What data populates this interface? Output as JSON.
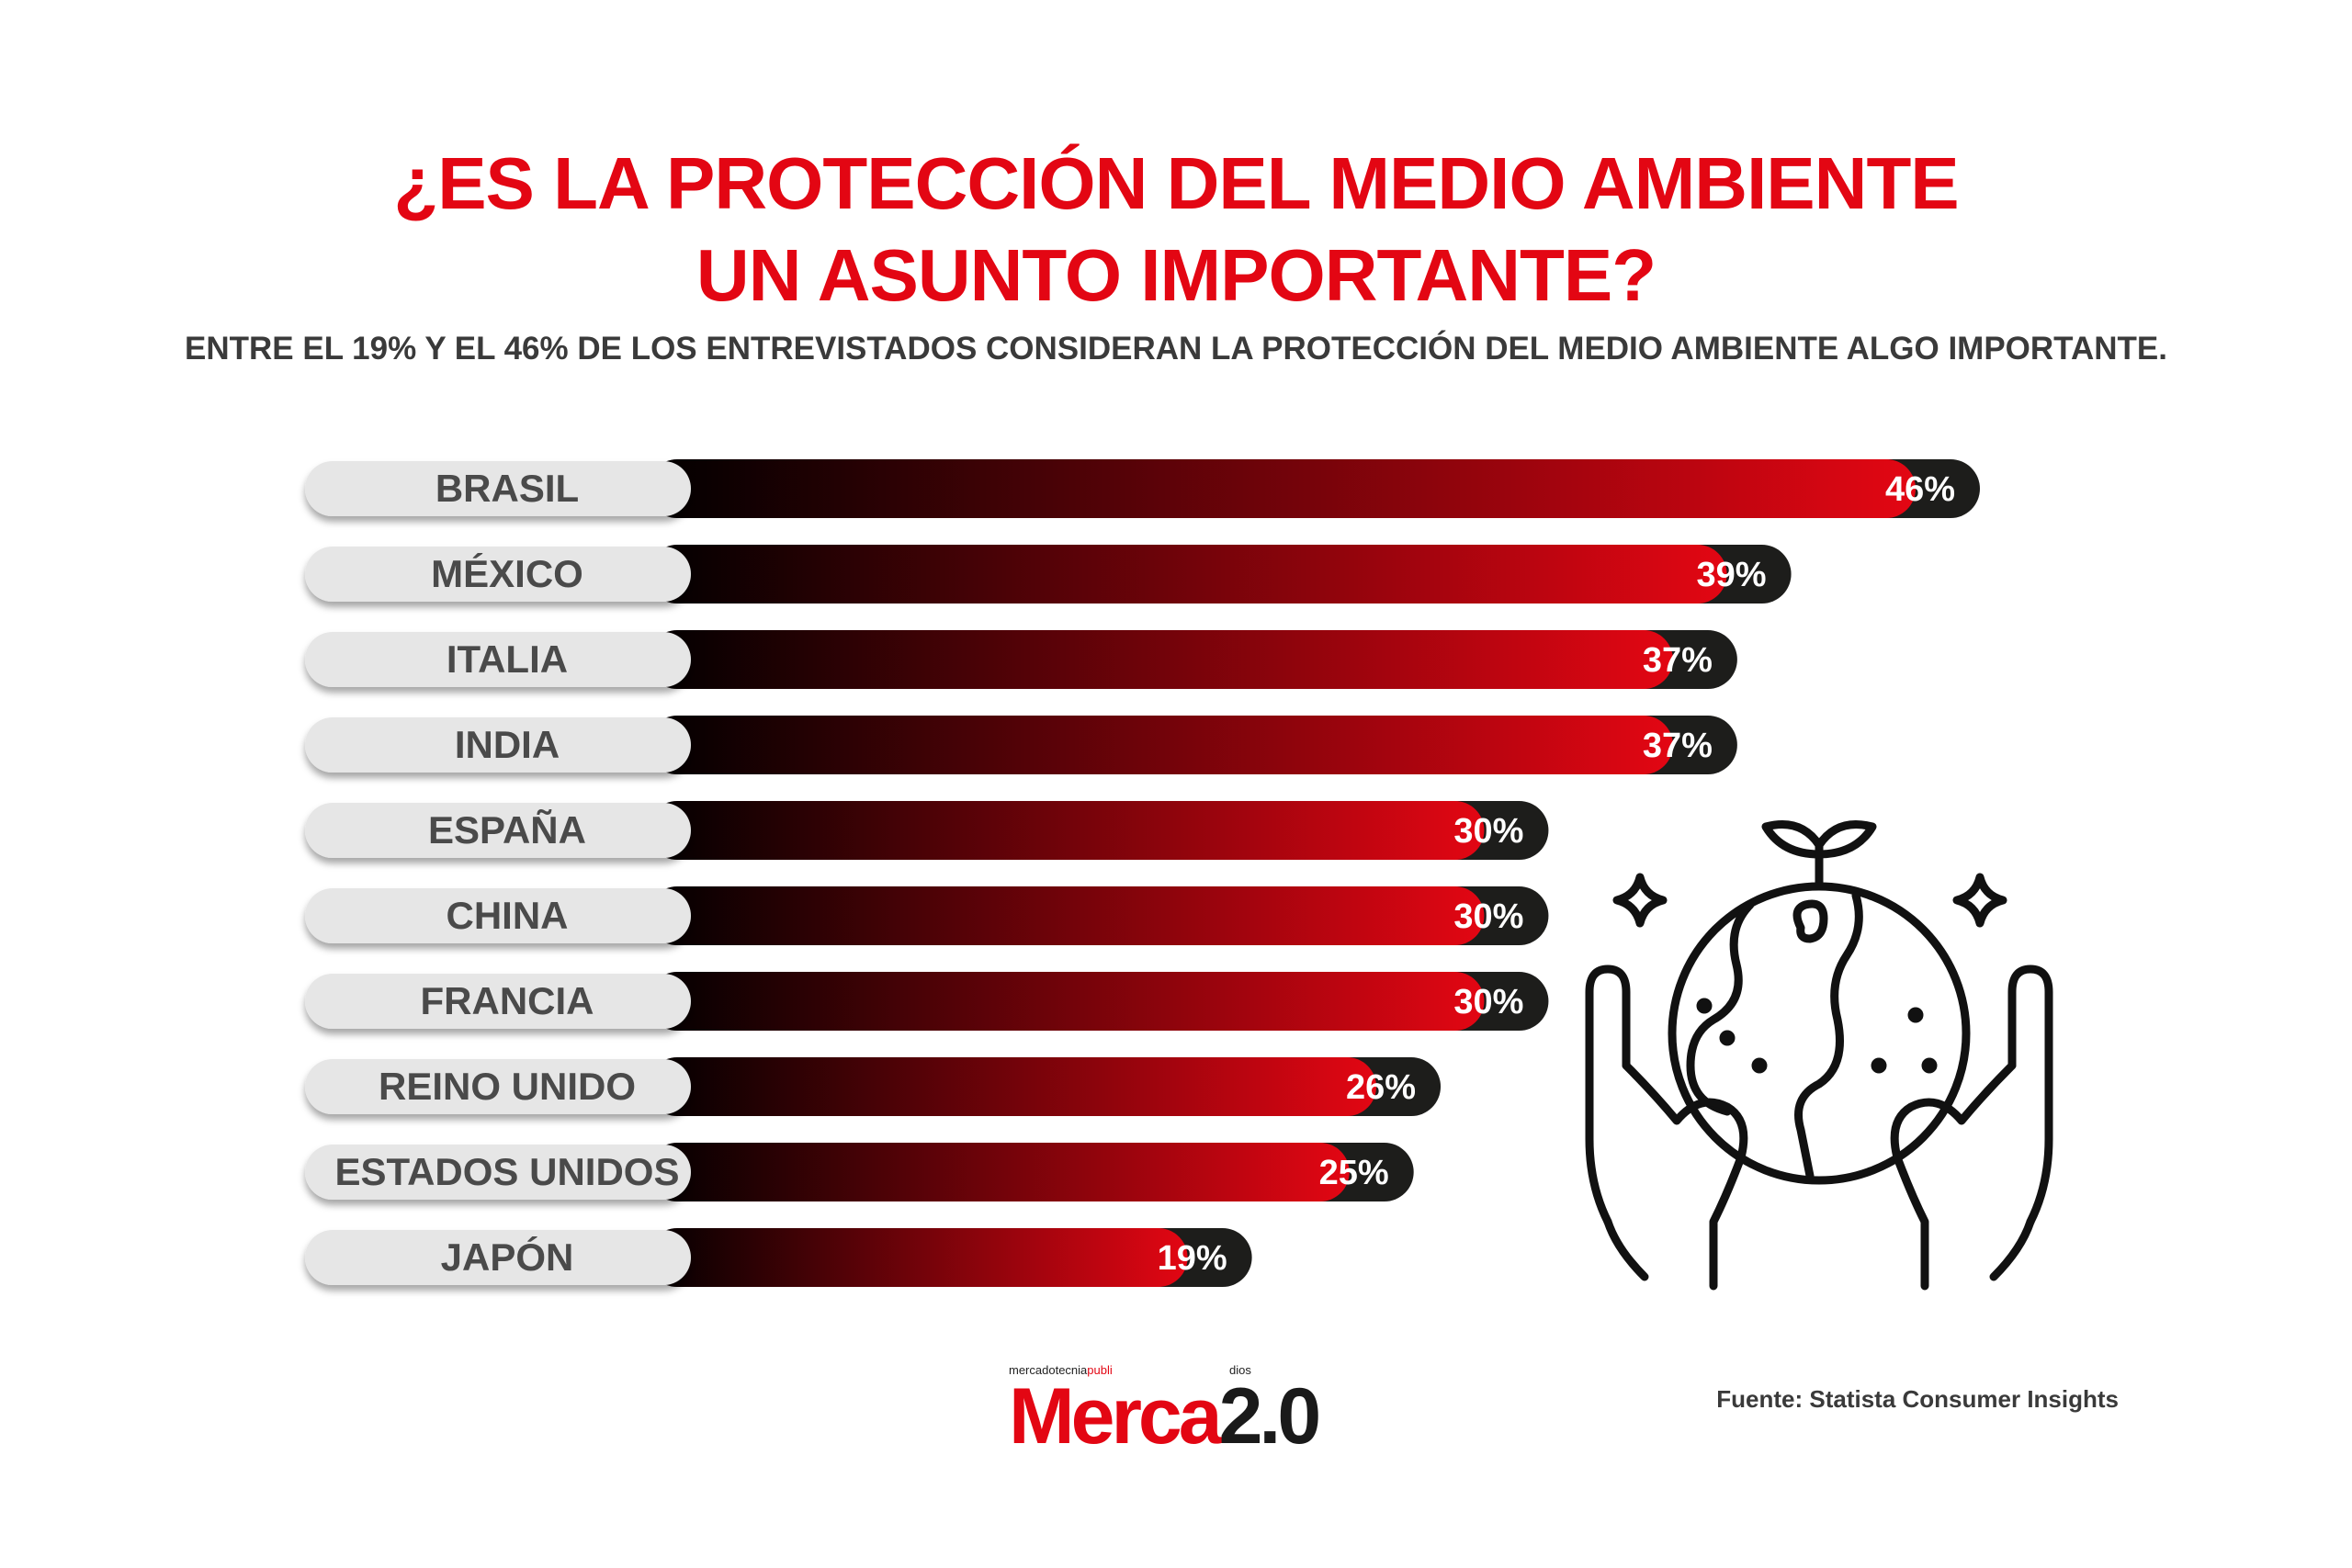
{
  "header": {
    "title_line1": "¿ES LA PROTECCIÓN DEL MEDIO AMBIENTE",
    "title_line2": "UN ASUNTO IMPORTANTE?",
    "subtitle": "ENTRE EL 19% Y EL 46% DE LOS ENTREVISTADOS CONSIDERAN LA PROTECCIÓN DEL MEDIO AMBIENTE ALGO IMPORTANTE."
  },
  "chart_data": {
    "type": "bar",
    "orientation": "horizontal",
    "categories": [
      "BRASIL",
      "MÉXICO",
      "ITALIA",
      "INDIA",
      "ESPAÑA",
      "CHINA",
      "FRANCIA",
      "REINO UNIDO",
      "ESTADOS UNIDOS",
      "JAPÓN"
    ],
    "values": [
      46,
      39,
      37,
      37,
      30,
      30,
      30,
      26,
      25,
      19
    ],
    "value_labels": [
      "46%",
      "39%",
      "37%",
      "37%",
      "30%",
      "30%",
      "30%",
      "26%",
      "25%",
      "19%"
    ],
    "unit": "%",
    "bar_gradient": [
      "#000000",
      "#e30613"
    ],
    "label_pill_color": "#e6e6e6",
    "value_pill_color": "#1d1d1b",
    "grid": false,
    "legend": "none"
  },
  "footer": {
    "logo_tagline_part1": "mercadotecnia",
    "logo_tagline_part2": "publi",
    "logo_tagline_part3": "dios",
    "logo_text_part1": "Merca",
    "logo_text_part2": "2.0",
    "source": "Fuente: Statista Consumer Insights"
  },
  "illustration": {
    "icon": "hands-holding-earth-with-sprout-icon"
  },
  "colors": {
    "accent": "#e30613",
    "text_dark": "#3a3a3a"
  }
}
